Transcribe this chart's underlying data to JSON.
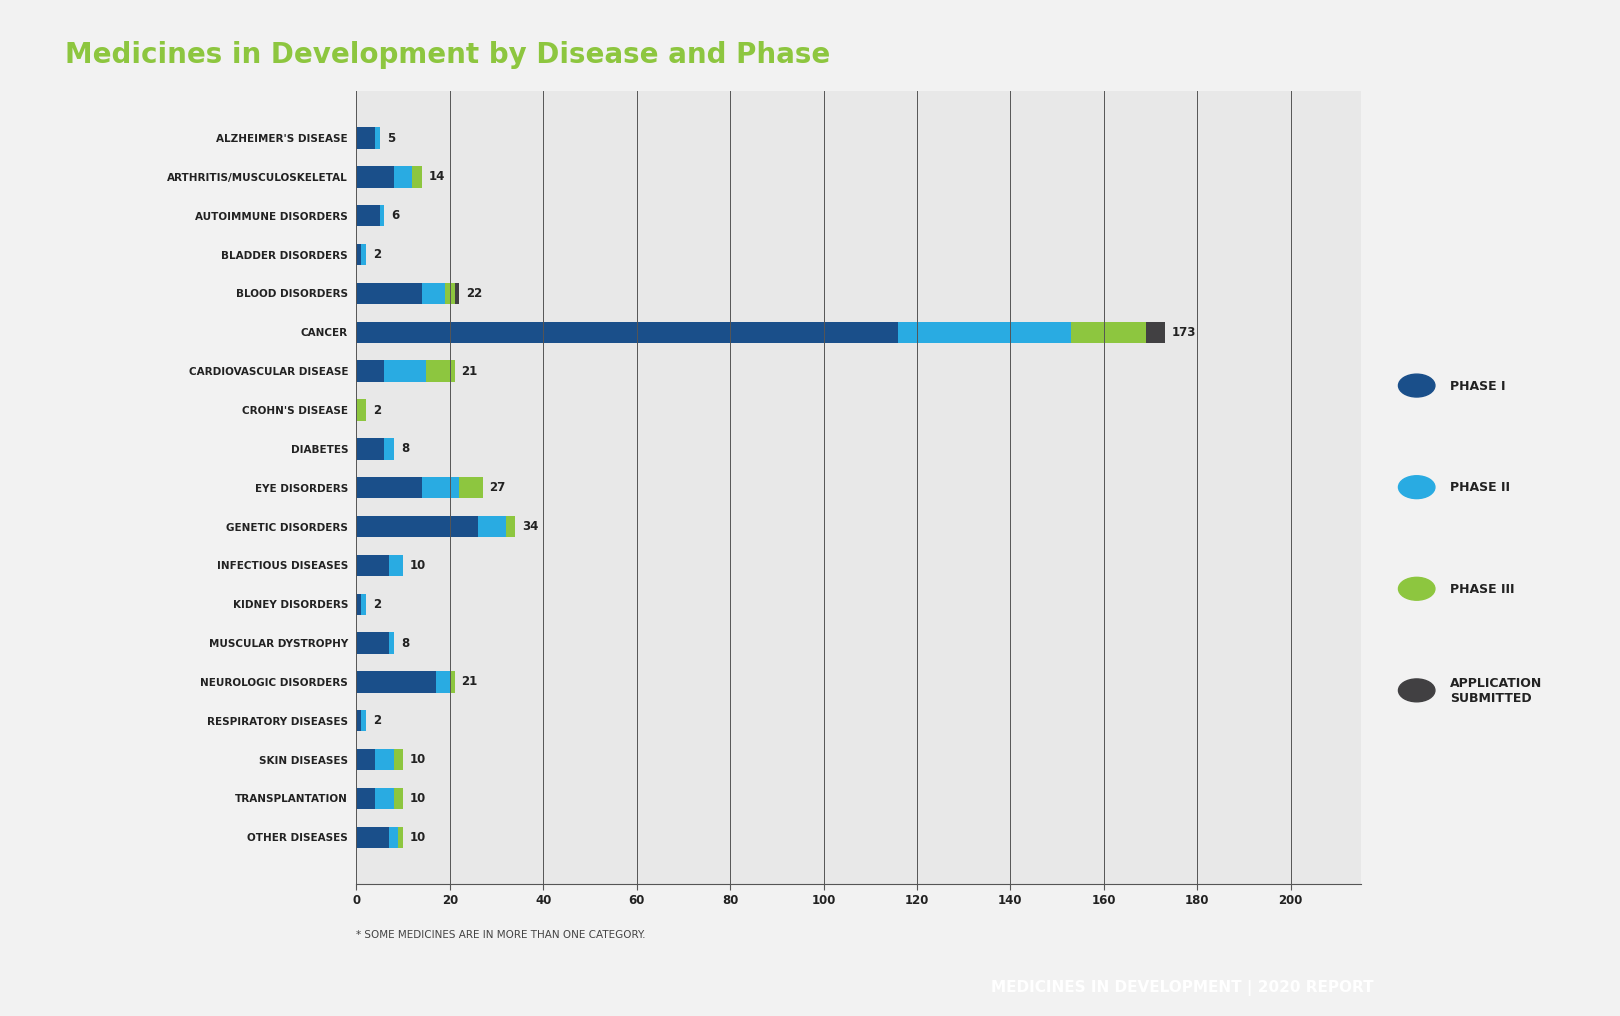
{
  "title": "Medicines in Development by Disease and Phase",
  "subtitle": "* SOME MEDICINES ARE IN MORE THAN ONE CATEGORY.",
  "footer": "MEDICINES IN DEVELOPMENT | 2020 REPORT",
  "categories": [
    "ALZHEIMER'S DISEASE",
    "ARTHRITIS/MUSCULOSKELETAL",
    "AUTOIMMUNE DISORDERS",
    "BLADDER DISORDERS",
    "BLOOD DISORDERS",
    "CANCER",
    "CARDIOVASCULAR DISEASE",
    "CROHN'S DISEASE",
    "DIABETES",
    "EYE DISORDERS",
    "GENETIC DISORDERS",
    "INFECTIOUS DISEASES",
    "KIDNEY DISORDERS",
    "MUSCULAR DYSTROPHY",
    "NEUROLOGIC DISORDERS",
    "RESPIRATORY DISEASES",
    "SKIN DISEASES",
    "TRANSPLANTATION",
    "OTHER DISEASES"
  ],
  "phase1": [
    4,
    8,
    5,
    1,
    14,
    116,
    6,
    0,
    6,
    14,
    26,
    7,
    1,
    7,
    17,
    1,
    4,
    4,
    7
  ],
  "phase2": [
    1,
    4,
    1,
    1,
    5,
    37,
    9,
    0,
    2,
    8,
    6,
    3,
    1,
    1,
    3,
    1,
    4,
    4,
    2
  ],
  "phase3": [
    0,
    2,
    0,
    0,
    2,
    16,
    6,
    2,
    0,
    5,
    2,
    0,
    0,
    0,
    1,
    0,
    2,
    2,
    1
  ],
  "appsubmit": [
    0,
    0,
    0,
    0,
    1,
    4,
    0,
    0,
    0,
    0,
    0,
    0,
    0,
    0,
    0,
    0,
    0,
    0,
    0
  ],
  "totals": [
    5,
    14,
    6,
    2,
    22,
    173,
    21,
    2,
    8,
    27,
    34,
    10,
    2,
    8,
    21,
    2,
    10,
    10,
    10
  ],
  "color_phase1": "#1a4f8a",
  "color_phase2": "#29abe2",
  "color_phase3": "#8dc63f",
  "color_appsubmit": "#414042",
  "color_title": "#8dc63f",
  "color_background": "#f2f2f2",
  "color_plot_bg": "#e8e8e8",
  "color_footer_bg": "#8dc63f",
  "color_footer_text": "#ffffff",
  "xlim": [
    0,
    215
  ],
  "xticks": [
    0,
    20,
    40,
    60,
    80,
    100,
    120,
    140,
    160,
    180,
    200
  ]
}
